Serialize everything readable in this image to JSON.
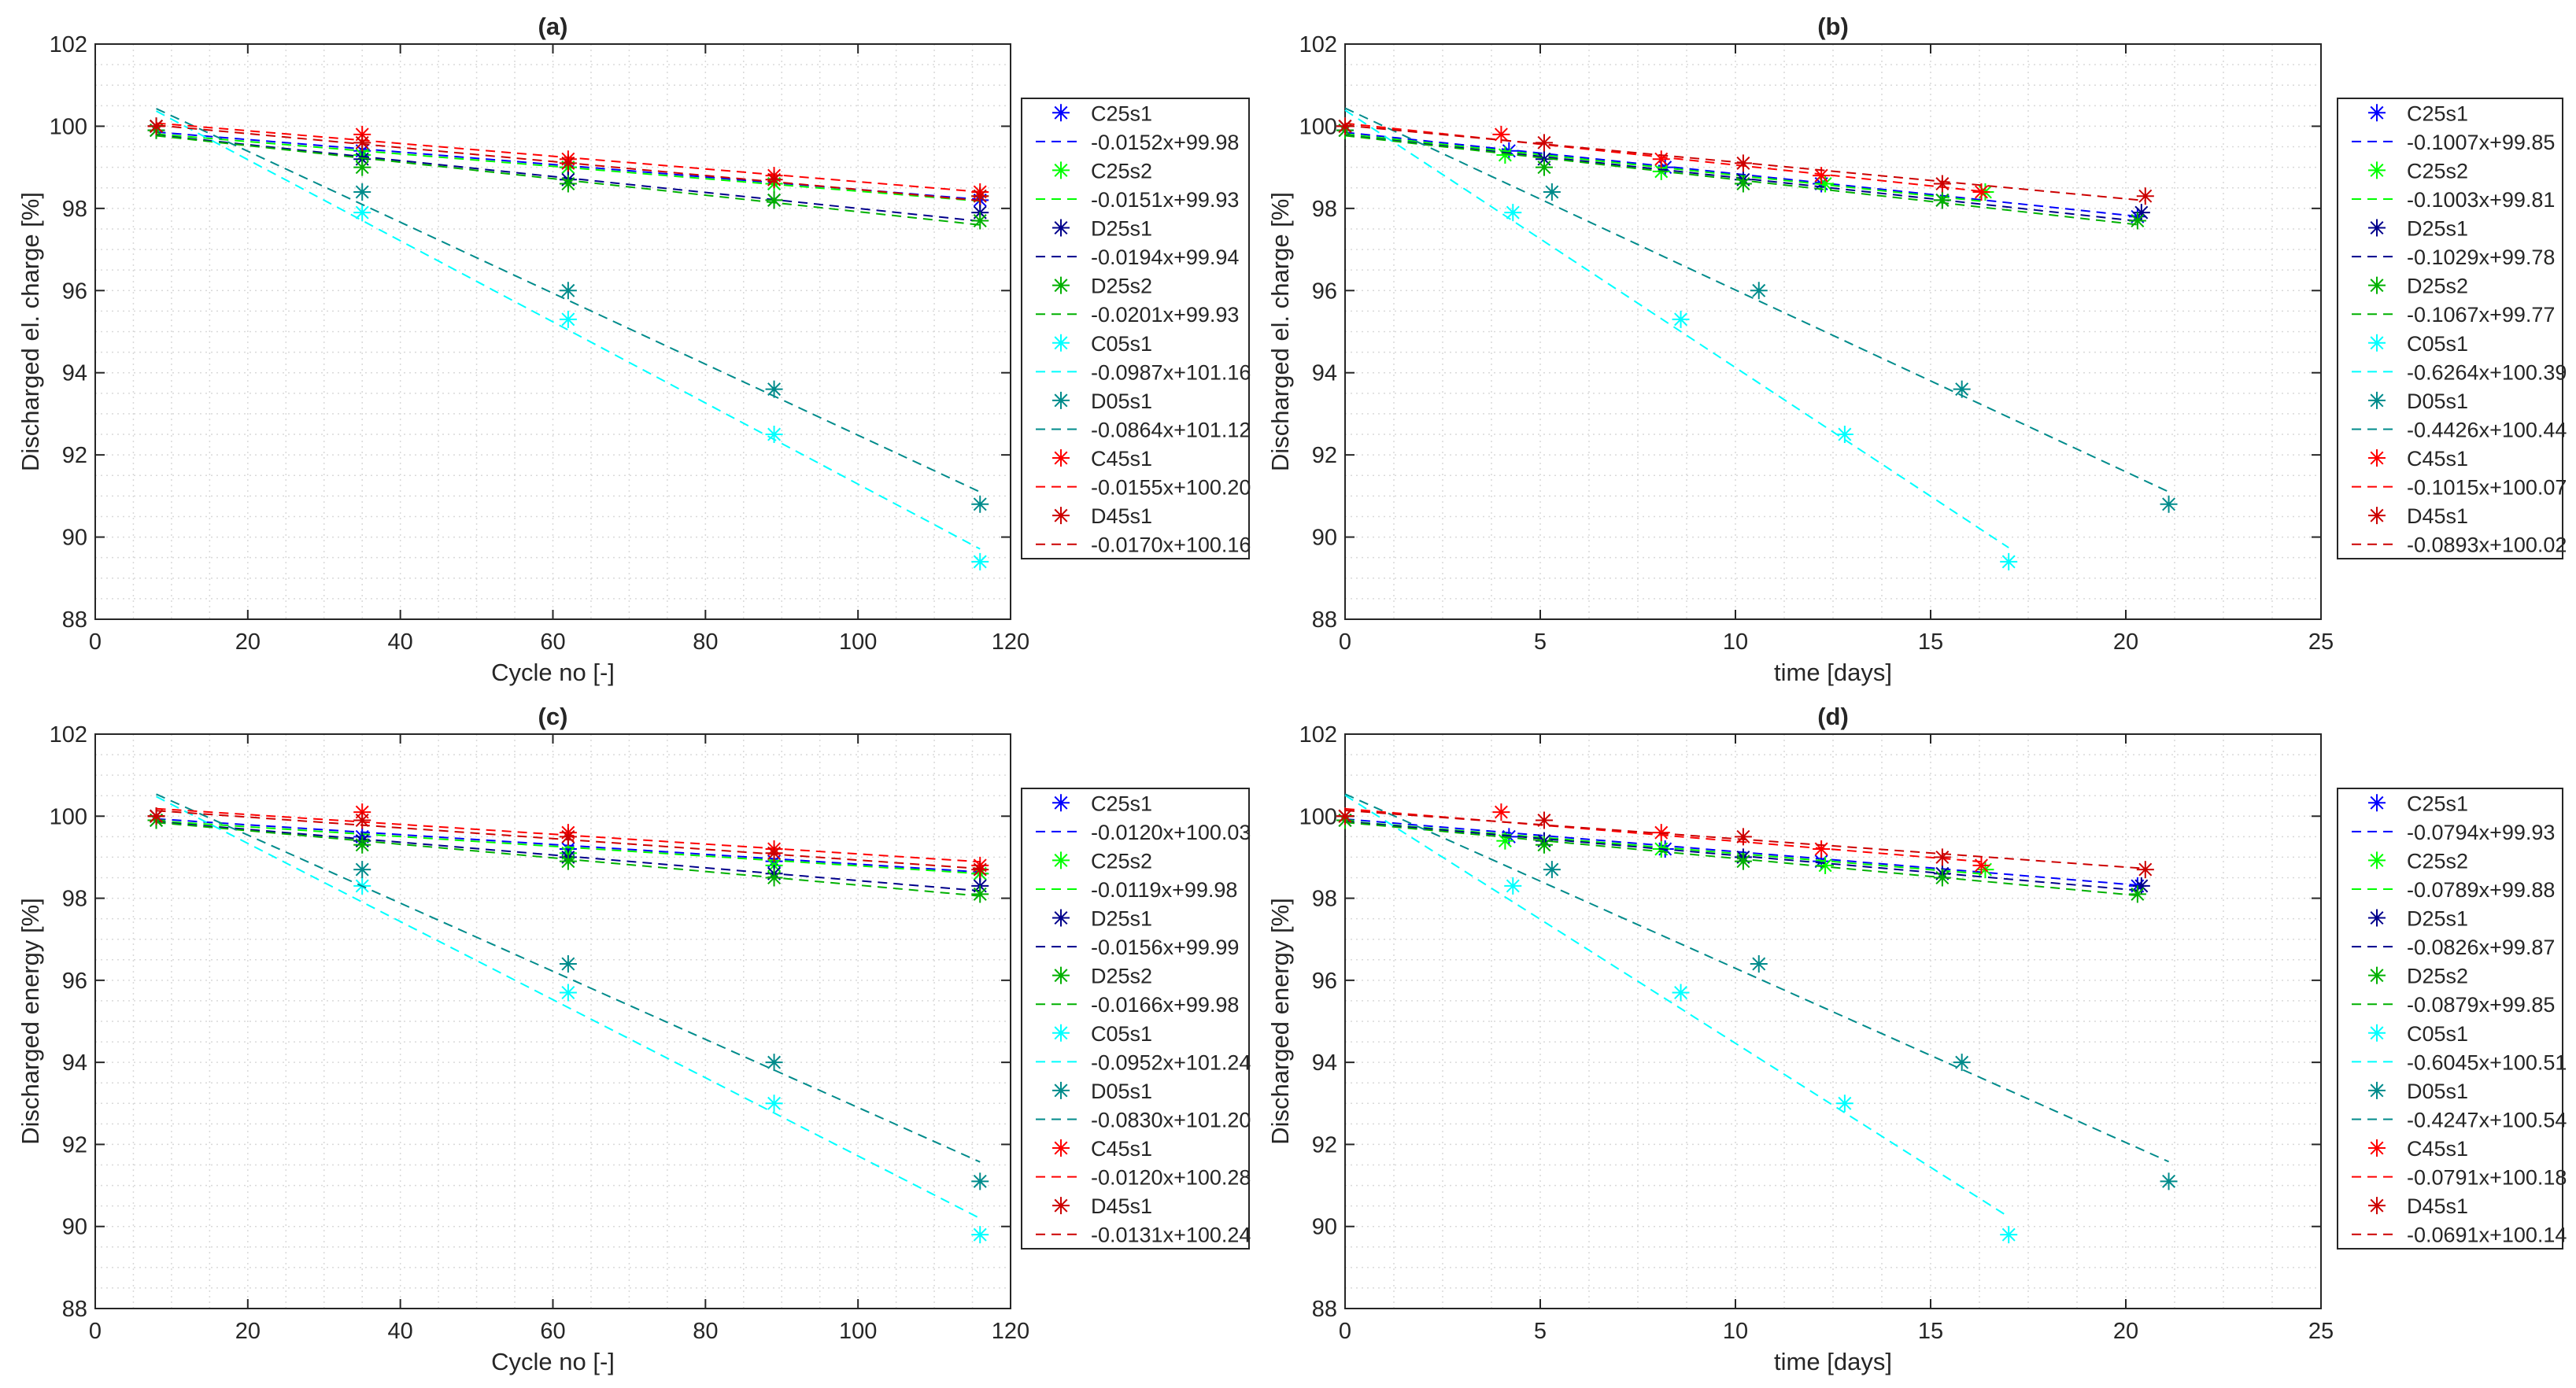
{
  "chart_data": [
    {
      "type": "scatter",
      "title": "(a)",
      "xlabel": "Cycle no [-]",
      "ylabel": "Discharged el. charge [%]",
      "xlim": [
        0,
        120
      ],
      "ylim": [
        88,
        102
      ],
      "xticks": [
        0,
        20,
        40,
        60,
        80,
        100,
        120
      ],
      "yticks": [
        88,
        90,
        92,
        94,
        96,
        98,
        100,
        102
      ],
      "grid": true,
      "legend_position": "outside-right",
      "series": [
        {
          "name": "C25s1",
          "fit": "-0.0152x+99.98",
          "slope": -0.0152,
          "intercept": 99.98,
          "color": "#0000ff",
          "x": [
            8,
            35,
            62,
            89,
            116
          ],
          "y": [
            100.0,
            99.4,
            99.0,
            98.6,
            98.2
          ]
        },
        {
          "name": "C25s2",
          "fit": "-0.0151x+99.93",
          "slope": -0.0151,
          "intercept": 99.93,
          "color": "#00ff00",
          "x": [
            8,
            35,
            62,
            89,
            116
          ],
          "y": [
            100.0,
            99.3,
            99.0,
            98.6,
            98.3
          ]
        },
        {
          "name": "D25s1",
          "fit": "-0.0194x+99.94",
          "slope": -0.0194,
          "intercept": 99.94,
          "color": "#00008b",
          "x": [
            8,
            35,
            62,
            89,
            116
          ],
          "y": [
            99.9,
            99.2,
            98.7,
            98.2,
            97.9
          ]
        },
        {
          "name": "D25s2",
          "fit": "-0.0201x+99.93",
          "slope": -0.0201,
          "intercept": 99.93,
          "color": "#00b000",
          "x": [
            8,
            35,
            62,
            89,
            116
          ],
          "y": [
            99.9,
            99.0,
            98.6,
            98.2,
            97.7
          ]
        },
        {
          "name": "C05s1",
          "fit": "-0.0987x+101.16",
          "slope": -0.0987,
          "intercept": 101.16,
          "color": "#00ffff",
          "x": [
            8,
            35,
            62,
            89,
            116
          ],
          "y": [
            100.0,
            97.9,
            95.3,
            92.5,
            89.4
          ]
        },
        {
          "name": "D05s1",
          "fit": "-0.0864x+101.12",
          "slope": -0.0864,
          "intercept": 101.12,
          "color": "#008b8b",
          "x": [
            8,
            35,
            62,
            89,
            116
          ],
          "y": [
            100.0,
            98.4,
            96.0,
            93.6,
            90.8
          ]
        },
        {
          "name": "C45s1",
          "fit": "-0.0155x+100.20",
          "slope": -0.0155,
          "intercept": 100.2,
          "color": "#ff0000",
          "x": [
            8,
            35,
            62,
            89,
            116
          ],
          "y": [
            100.0,
            99.8,
            99.2,
            98.8,
            98.4
          ]
        },
        {
          "name": "D45s1",
          "fit": "-0.0170x+100.16",
          "slope": -0.017,
          "intercept": 100.16,
          "color": "#cc0000",
          "x": [
            8,
            35,
            62,
            89,
            116
          ],
          "y": [
            100.0,
            99.6,
            99.1,
            98.7,
            98.3
          ]
        }
      ]
    },
    {
      "type": "scatter",
      "title": "(b)",
      "xlabel": "time [days]",
      "ylabel": "Discharged el. charge [%]",
      "xlim": [
        0,
        25
      ],
      "ylim": [
        88,
        102
      ],
      "xticks": [
        0,
        5,
        10,
        15,
        20,
        25
      ],
      "yticks": [
        88,
        90,
        92,
        94,
        96,
        98,
        100,
        102
      ],
      "grid": true,
      "legend_position": "outside-right",
      "series": [
        {
          "name": "C25s1",
          "fit": "-0.1007x+99.85",
          "slope": -0.1007,
          "intercept": 99.85,
          "color": "#0000ff",
          "x": [
            0,
            4.2,
            8.2,
            12.2,
            20.3
          ],
          "y": [
            100.0,
            99.4,
            99.0,
            98.6,
            97.8
          ]
        },
        {
          "name": "C25s2",
          "fit": "-0.1003x+99.81",
          "slope": -0.1003,
          "intercept": 99.81,
          "color": "#00ff00",
          "x": [
            0,
            4.1,
            8.1,
            12.3,
            16.4
          ],
          "y": [
            100.0,
            99.3,
            98.9,
            98.6,
            98.4
          ]
        },
        {
          "name": "D25s1",
          "fit": "-0.1029x+99.78",
          "slope": -0.1029,
          "intercept": 99.78,
          "color": "#00008b",
          "x": [
            0,
            5.1,
            10.2,
            15.3,
            20.4
          ],
          "y": [
            99.9,
            99.2,
            98.7,
            98.2,
            97.9
          ]
        },
        {
          "name": "D25s2",
          "fit": "-0.1067x+99.77",
          "slope": -0.1067,
          "intercept": 99.77,
          "color": "#00b000",
          "x": [
            0,
            5.1,
            10.2,
            15.3,
            20.3
          ],
          "y": [
            99.9,
            99.0,
            98.6,
            98.2,
            97.7
          ]
        },
        {
          "name": "C05s1",
          "fit": "-0.6264x+100.39",
          "slope": -0.6264,
          "intercept": 100.39,
          "color": "#00ffff",
          "x": [
            0,
            4.3,
            8.6,
            12.8,
            17.0
          ],
          "y": [
            100.0,
            97.9,
            95.3,
            92.5,
            89.4
          ]
        },
        {
          "name": "D05s1",
          "fit": "-0.4426x+100.44",
          "slope": -0.4426,
          "intercept": 100.44,
          "color": "#008b8b",
          "x": [
            0,
            5.3,
            10.6,
            15.8,
            21.1
          ],
          "y": [
            100.0,
            98.4,
            96.0,
            93.6,
            90.8
          ]
        },
        {
          "name": "C45s1",
          "fit": "-0.1015x+100.07",
          "slope": -0.1015,
          "intercept": 100.07,
          "color": "#ff0000",
          "x": [
            0,
            4.0,
            8.1,
            12.2,
            16.3
          ],
          "y": [
            100.0,
            99.8,
            99.2,
            98.8,
            98.4
          ]
        },
        {
          "name": "D45s1",
          "fit": "-0.0893x+100.02",
          "slope": -0.0893,
          "intercept": 100.02,
          "color": "#cc0000",
          "x": [
            0,
            5.1,
            10.2,
            15.3,
            20.5
          ],
          "y": [
            100.0,
            99.6,
            99.1,
            98.6,
            98.3
          ]
        }
      ]
    },
    {
      "type": "scatter",
      "title": "(c)",
      "xlabel": "Cycle no [-]",
      "ylabel": "Discharged energy [%]",
      "xlim": [
        0,
        120
      ],
      "ylim": [
        88,
        102
      ],
      "xticks": [
        0,
        20,
        40,
        60,
        80,
        100,
        120
      ],
      "yticks": [
        88,
        90,
        92,
        94,
        96,
        98,
        100,
        102
      ],
      "grid": true,
      "legend_position": "outside-right",
      "series": [
        {
          "name": "C25s1",
          "fit": "-0.0120x+100.03",
          "slope": -0.012,
          "intercept": 100.03,
          "color": "#0000ff",
          "x": [
            8,
            35,
            62,
            89,
            116
          ],
          "y": [
            100.0,
            99.5,
            99.2,
            98.9,
            98.6
          ]
        },
        {
          "name": "C25s2",
          "fit": "-0.0119x+99.98",
          "slope": -0.0119,
          "intercept": 99.98,
          "color": "#00ff00",
          "x": [
            8,
            35,
            62,
            89,
            116
          ],
          "y": [
            100.0,
            99.4,
            99.1,
            98.8,
            98.6
          ]
        },
        {
          "name": "D25s1",
          "fit": "-0.0156x+99.99",
          "slope": -0.0156,
          "intercept": 99.99,
          "color": "#00008b",
          "x": [
            8,
            35,
            62,
            89,
            116
          ],
          "y": [
            99.9,
            99.4,
            99.0,
            98.6,
            98.3
          ]
        },
        {
          "name": "D25s2",
          "fit": "-0.0166x+99.98",
          "slope": -0.0166,
          "intercept": 99.98,
          "color": "#00b000",
          "x": [
            8,
            35,
            62,
            89,
            116
          ],
          "y": [
            99.9,
            99.3,
            98.9,
            98.5,
            98.1
          ]
        },
        {
          "name": "C05s1",
          "fit": "-0.0952x+101.24",
          "slope": -0.0952,
          "intercept": 101.24,
          "color": "#00ffff",
          "x": [
            8,
            35,
            62,
            89,
            116
          ],
          "y": [
            100.0,
            98.3,
            95.7,
            93.0,
            89.8
          ]
        },
        {
          "name": "D05s1",
          "fit": "-0.0830x+101.20",
          "slope": -0.083,
          "intercept": 101.2,
          "color": "#008b8b",
          "x": [
            8,
            35,
            62,
            89,
            116
          ],
          "y": [
            100.0,
            98.7,
            96.4,
            94.0,
            91.1
          ]
        },
        {
          "name": "C45s1",
          "fit": "-0.0120x+100.28",
          "slope": -0.012,
          "intercept": 100.28,
          "color": "#ff0000",
          "x": [
            8,
            35,
            62,
            89,
            116
          ],
          "y": [
            100.0,
            100.1,
            99.6,
            99.2,
            98.8
          ]
        },
        {
          "name": "D45s1",
          "fit": "-0.0131x+100.24",
          "slope": -0.0131,
          "intercept": 100.24,
          "color": "#cc0000",
          "x": [
            8,
            35,
            62,
            89,
            116
          ],
          "y": [
            100.0,
            99.9,
            99.5,
            99.1,
            98.7
          ]
        }
      ]
    },
    {
      "type": "scatter",
      "title": "(d)",
      "xlabel": "time [days]",
      "ylabel": "Discharged energy [%]",
      "xlim": [
        0,
        25
      ],
      "ylim": [
        88,
        102
      ],
      "xticks": [
        0,
        5,
        10,
        15,
        20,
        25
      ],
      "yticks": [
        88,
        90,
        92,
        94,
        96,
        98,
        100,
        102
      ],
      "grid": true,
      "legend_position": "outside-right",
      "series": [
        {
          "name": "C25s1",
          "fit": "-0.0794x+99.93",
          "slope": -0.0794,
          "intercept": 99.93,
          "color": "#0000ff",
          "x": [
            0,
            4.2,
            8.2,
            12.2,
            20.3
          ],
          "y": [
            100.0,
            99.5,
            99.2,
            98.9,
            98.3
          ]
        },
        {
          "name": "C25s2",
          "fit": "-0.0789x+99.88",
          "slope": -0.0789,
          "intercept": 99.88,
          "color": "#00ff00",
          "x": [
            0,
            4.1,
            8.1,
            12.3,
            16.4
          ],
          "y": [
            100.0,
            99.4,
            99.2,
            98.8,
            98.7
          ]
        },
        {
          "name": "D25s1",
          "fit": "-0.0826x+99.87",
          "slope": -0.0826,
          "intercept": 99.87,
          "color": "#00008b",
          "x": [
            0,
            5.1,
            10.2,
            15.3,
            20.4
          ],
          "y": [
            99.9,
            99.4,
            99.0,
            98.6,
            98.3
          ]
        },
        {
          "name": "D25s2",
          "fit": "-0.0879x+99.85",
          "slope": -0.0879,
          "intercept": 99.85,
          "color": "#00b000",
          "x": [
            0,
            5.1,
            10.2,
            15.3,
            20.3
          ],
          "y": [
            99.9,
            99.3,
            98.9,
            98.5,
            98.1
          ]
        },
        {
          "name": "C05s1",
          "fit": "-0.6045x+100.51",
          "slope": -0.6045,
          "intercept": 100.51,
          "color": "#00ffff",
          "x": [
            0,
            4.3,
            8.6,
            12.8,
            17.0
          ],
          "y": [
            100.0,
            98.3,
            95.7,
            93.0,
            89.8
          ]
        },
        {
          "name": "D05s1",
          "fit": "-0.4247x+100.54",
          "slope": -0.4247,
          "intercept": 100.54,
          "color": "#008b8b",
          "x": [
            0,
            5.3,
            10.6,
            15.8,
            21.1
          ],
          "y": [
            100.0,
            98.7,
            96.4,
            94.0,
            91.1
          ]
        },
        {
          "name": "C45s1",
          "fit": "-0.0791x+100.18",
          "slope": -0.0791,
          "intercept": 100.18,
          "color": "#ff0000",
          "x": [
            0,
            4.0,
            8.1,
            12.2,
            16.3
          ],
          "y": [
            100.0,
            100.1,
            99.6,
            99.2,
            98.8
          ]
        },
        {
          "name": "D45s1",
          "fit": "-0.0691x+100.14",
          "slope": -0.0691,
          "intercept": 100.14,
          "color": "#cc0000",
          "x": [
            0,
            5.1,
            10.2,
            15.3,
            20.5
          ],
          "y": [
            100.0,
            99.9,
            99.5,
            99.0,
            98.7
          ]
        }
      ]
    }
  ]
}
